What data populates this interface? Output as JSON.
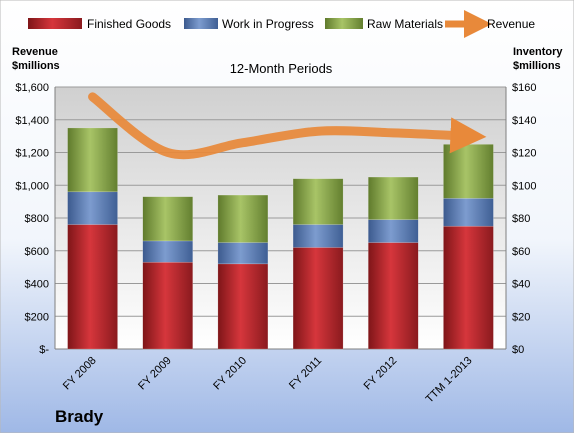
{
  "chart_data": {
    "type": "bar",
    "stacked": true,
    "subtitle": "12-Month Periods",
    "company": "Brady",
    "categories": [
      "FY 2008",
      "FY 2009",
      "FY 2010",
      "FY 2011",
      "FY 2012",
      "TTM 1-2013"
    ],
    "y_left": {
      "label_line1": "Revenue",
      "label_line2": "$millions",
      "range": [
        0,
        1600
      ],
      "ticks": [
        0,
        200,
        400,
        600,
        800,
        1000,
        1200,
        1400,
        1600
      ],
      "tick_labels": [
        "$-",
        "$200",
        "$400",
        "$600",
        "$800",
        "$1,000",
        "$1,200",
        "$1,400",
        "$1,600"
      ]
    },
    "y_right": {
      "label_line1": "Inventory",
      "label_line2": "$millions",
      "range": [
        0,
        160
      ],
      "ticks": [
        0,
        20,
        40,
        60,
        80,
        100,
        120,
        140,
        160
      ],
      "tick_labels": [
        "$0",
        "$20",
        "$40",
        "$60",
        "$80",
        "$100",
        "$120",
        "$140",
        "$160"
      ]
    },
    "series": [
      {
        "name": "Finished Goods",
        "axis": "right",
        "color": "#c0282e",
        "values": [
          76,
          53,
          52,
          62,
          65,
          75
        ]
      },
      {
        "name": "Work in Progress",
        "axis": "right",
        "color": "#5b7fba",
        "values": [
          20,
          13,
          13,
          14,
          14,
          17
        ]
      },
      {
        "name": "Raw Materials",
        "axis": "right",
        "color": "#8fae4a",
        "values": [
          39,
          27,
          29,
          28,
          26,
          33
        ]
      }
    ],
    "line_series": {
      "name": "Revenue",
      "axis": "left",
      "color": "#e8893a",
      "values": [
        1540,
        1200,
        1260,
        1330,
        1320,
        1300
      ]
    },
    "grid": true,
    "legend": "top"
  }
}
